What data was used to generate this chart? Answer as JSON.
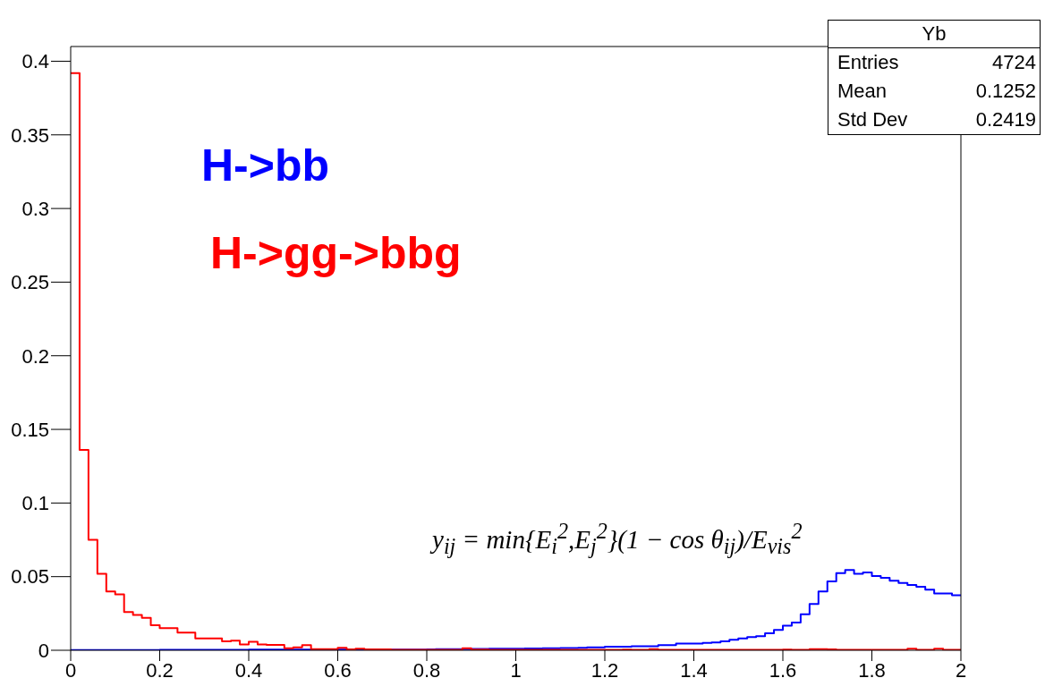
{
  "chart_data": {
    "type": "histogram",
    "bins": [
      0,
      0.02,
      0.04,
      0.06,
      0.08,
      0.1,
      0.12,
      0.14,
      0.16,
      0.18,
      0.2,
      0.22,
      0.24,
      0.26,
      0.28,
      0.3,
      0.32,
      0.34,
      0.36,
      0.38,
      0.4,
      0.42,
      0.44,
      0.46,
      0.48,
      0.5,
      0.52,
      0.54,
      0.56,
      0.58,
      0.6,
      0.62,
      0.64,
      0.66,
      0.68,
      0.7,
      0.72,
      0.74,
      0.76,
      0.78,
      0.8,
      0.82,
      0.84,
      0.86,
      0.88,
      0.9,
      0.92,
      0.94,
      0.96,
      0.98,
      1,
      1.02,
      1.04,
      1.06,
      1.08,
      1.1,
      1.12,
      1.14,
      1.16,
      1.18,
      1.2,
      1.22,
      1.24,
      1.26,
      1.28,
      1.3,
      1.32,
      1.34,
      1.36,
      1.38,
      1.4,
      1.42,
      1.44,
      1.46,
      1.48,
      1.5,
      1.52,
      1.54,
      1.56,
      1.58,
      1.6,
      1.62,
      1.64,
      1.66,
      1.68,
      1.7,
      1.72,
      1.74,
      1.76,
      1.78,
      1.8,
      1.82,
      1.84,
      1.86,
      1.88,
      1.9,
      1.92,
      1.94,
      1.96,
      1.98,
      2
    ],
    "series": [
      {
        "name": "H->bb",
        "color": "#0000ff",
        "values": [
          0.0002,
          0.0002,
          0.0002,
          0.0002,
          0.0002,
          0.0002,
          0.0002,
          0.0002,
          0.0002,
          0.0002,
          0.0003,
          0.0003,
          0.0003,
          0.0003,
          0.0003,
          0.0003,
          0.0003,
          0.0003,
          0.0003,
          0.0003,
          0.0004,
          0.0004,
          0.0004,
          0.0004,
          0.0004,
          0.0004,
          0.0004,
          0.0004,
          0.0004,
          0.0004,
          0.0005,
          0.0005,
          0.0005,
          0.0005,
          0.0005,
          0.0005,
          0.0005,
          0.0005,
          0.0005,
          0.0005,
          0.0006,
          0.0007,
          0.0007,
          0.0008,
          0.0008,
          0.0009,
          0.0009,
          0.001,
          0.001,
          0.001,
          0.0011,
          0.0012,
          0.0012,
          0.0013,
          0.0014,
          0.0015,
          0.0015,
          0.0016,
          0.002,
          0.002,
          0.0024,
          0.0024,
          0.0024,
          0.0028,
          0.0028,
          0.0028,
          0.0035,
          0.0035,
          0.0045,
          0.0045,
          0.0045,
          0.005,
          0.0053,
          0.0061,
          0.0071,
          0.0081,
          0.0089,
          0.0096,
          0.0116,
          0.0138,
          0.0167,
          0.0189,
          0.0244,
          0.0315,
          0.04,
          0.0467,
          0.0524,
          0.0545,
          0.052,
          0.0528,
          0.0504,
          0.0492,
          0.0472,
          0.0457,
          0.0443,
          0.0431,
          0.0411,
          0.0386,
          0.0386,
          0.0374
        ]
      },
      {
        "name": "H->gg->bbg",
        "color": "#ff0000",
        "values": [
          0.392,
          0.136,
          0.075,
          0.052,
          0.04,
          0.038,
          0.026,
          0.024,
          0.022,
          0.017,
          0.015,
          0.015,
          0.012,
          0.012,
          0.008,
          0.008,
          0.008,
          0.006,
          0.0065,
          0.004,
          0.0057,
          0.004,
          0.0037,
          0.0037,
          0.0014,
          0.002,
          0.0035,
          0.0008,
          0.0008,
          0.0008,
          0.0016,
          0.0006,
          0.001,
          0.0006,
          0.0006,
          0.0006,
          0.0003,
          0.0003,
          0.0003,
          0.0003,
          0.0003,
          0.0003,
          0.0003,
          0.0003,
          0.0014,
          0.0005,
          0.0004,
          0.0003,
          0.0003,
          0.0003,
          0.0003,
          0.0003,
          0.0003,
          0.0003,
          0.0003,
          0.0003,
          0.0003,
          0.0003,
          0.0003,
          0.0003,
          0.0003,
          0.0003,
          0.0004,
          0.0003,
          0.0003,
          0.0008,
          0.0003,
          0.0003,
          0.0003,
          0.0003,
          0.0003,
          0.0003,
          0.0003,
          0.0003,
          0.0003,
          0.0003,
          0.0003,
          0.0003,
          0.0003,
          0.0003,
          0.0004,
          0.0003,
          0.0003,
          0.0008,
          0.0008,
          0.0006,
          0.0003,
          0.0003,
          0.0003,
          0.0003,
          0.0003,
          0.0003,
          0.0003,
          0.0003,
          0.001,
          0.0003,
          0.0003,
          0.001,
          0.0003,
          0.0003
        ]
      }
    ],
    "xlim": [
      0,
      2
    ],
    "xticks": [
      0,
      0.2,
      0.4,
      0.6,
      0.8,
      1,
      1.2,
      1.4,
      1.6,
      1.8,
      2
    ],
    "ylim": [
      0,
      0.41
    ],
    "yticks": [
      0,
      0.05,
      0.1,
      0.15,
      0.2,
      0.25,
      0.3,
      0.35,
      0.4
    ],
    "annotations": [
      "Yb",
      "Entries",
      "4724",
      "Mean",
      "0.1252",
      "Std Dev",
      "0.2419",
      "y$_{ij}$ = min{E$_{i}$$^{2}$,E$_{j}$$^{2}$}(1 − cos θ$_{ij}$)/E$_{vis}$$^{2}$"
    ]
  }
}
